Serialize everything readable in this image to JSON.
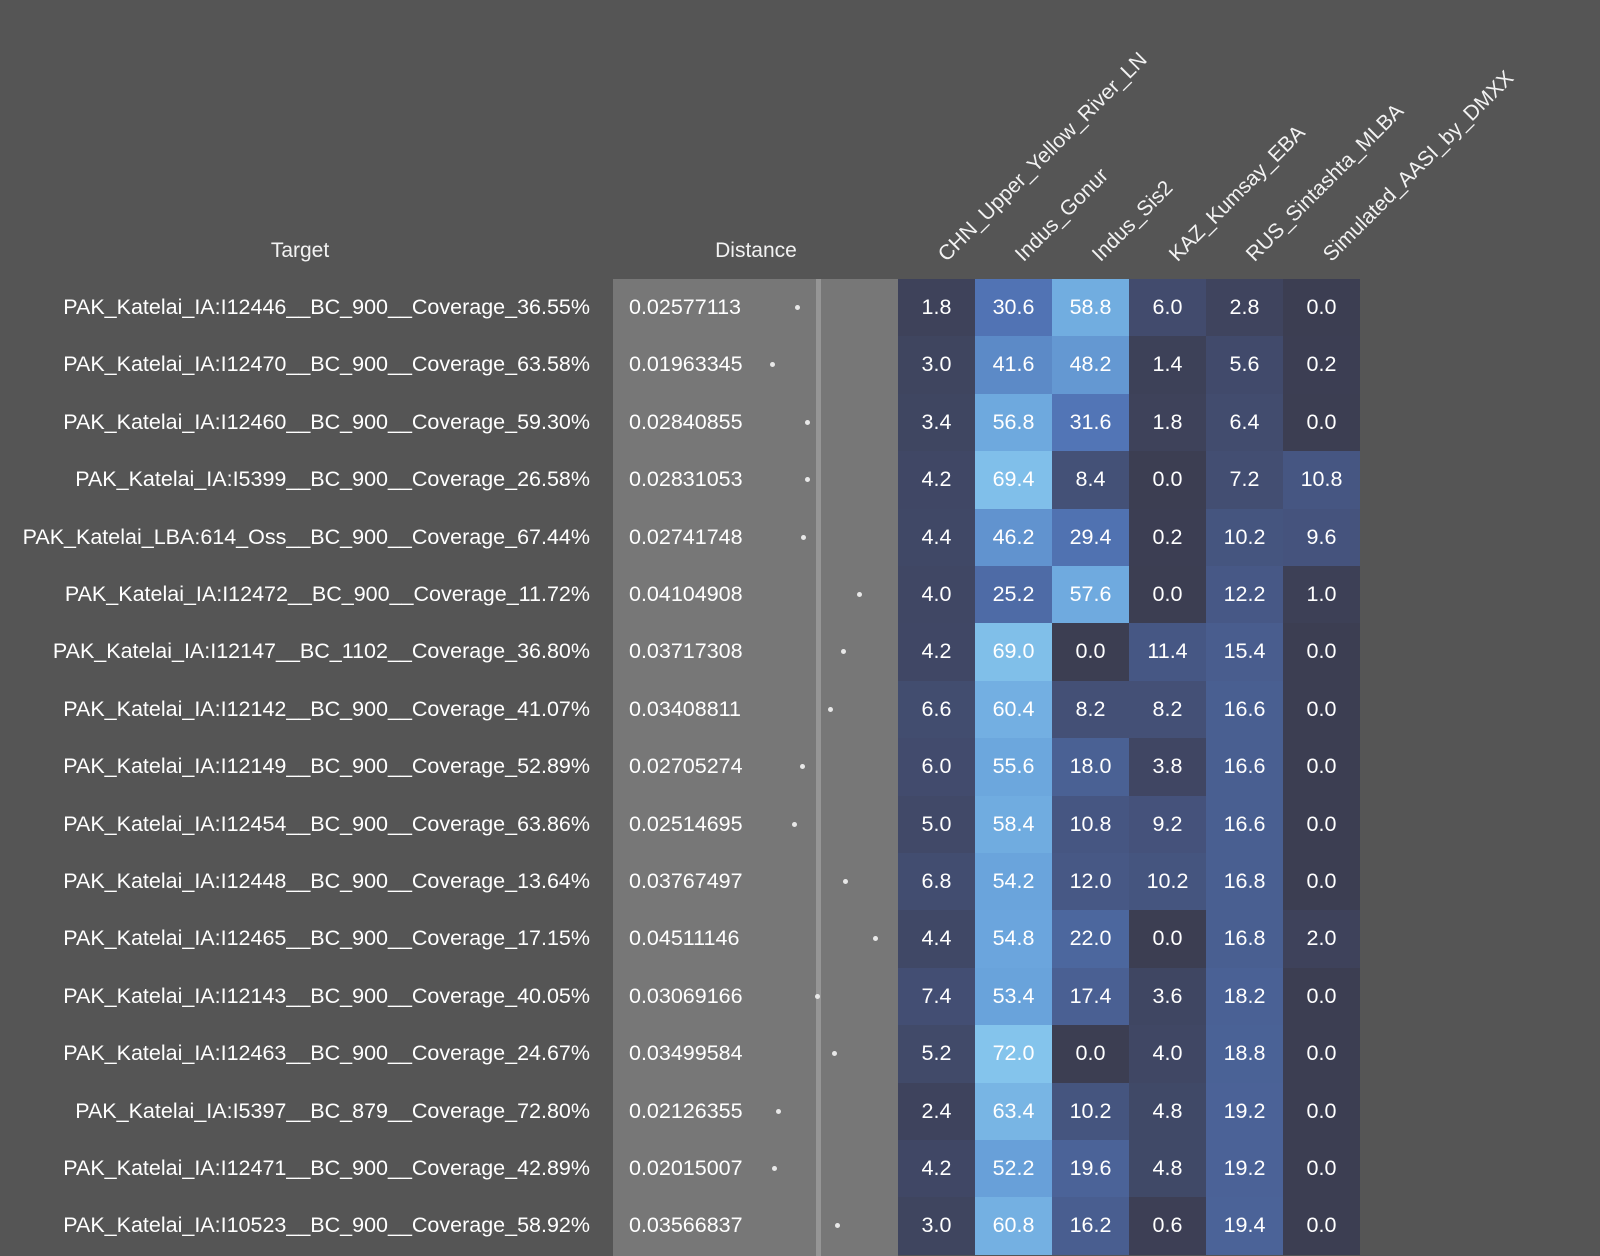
{
  "headers": {
    "target": "Target",
    "distance": "Distance",
    "sources": [
      "CHN_Upper_Yellow_River_LN",
      "Indus_Gonur",
      "Indus_Sis2",
      "KAZ_Kumsay_EBA",
      "RUS_Sintashta_MLBA",
      "Simulated_AASI_by_DMXX"
    ]
  },
  "rows": [
    {
      "target": "PAK_Katelai_IA:I12446__BC_900__Coverage_36.55%",
      "distance": "0.02577113",
      "distance_value": 0.02577113,
      "values": [
        "1.8",
        "30.6",
        "58.8",
        "6.0",
        "2.8",
        "0.0"
      ]
    },
    {
      "target": "PAK_Katelai_IA:I12470__BC_900__Coverage_63.58%",
      "distance": "0.01963345",
      "distance_value": 0.01963345,
      "values": [
        "3.0",
        "41.6",
        "48.2",
        "1.4",
        "5.6",
        "0.2"
      ]
    },
    {
      "target": "PAK_Katelai_IA:I12460__BC_900__Coverage_59.30%",
      "distance": "0.02840855",
      "distance_value": 0.02840855,
      "values": [
        "3.4",
        "56.8",
        "31.6",
        "1.8",
        "6.4",
        "0.0"
      ]
    },
    {
      "target": "PAK_Katelai_IA:I5399__BC_900__Coverage_26.58%",
      "distance": "0.02831053",
      "distance_value": 0.02831053,
      "values": [
        "4.2",
        "69.4",
        "8.4",
        "0.0",
        "7.2",
        "10.8"
      ]
    },
    {
      "target": "PAK_Katelai_LBA:614_Oss__BC_900__Coverage_67.44%",
      "distance": "0.02741748",
      "distance_value": 0.02741748,
      "values": [
        "4.4",
        "46.2",
        "29.4",
        "0.2",
        "10.2",
        "9.6"
      ]
    },
    {
      "target": "PAK_Katelai_IA:I12472__BC_900__Coverage_11.72%",
      "distance": "0.04104908",
      "distance_value": 0.04104908,
      "values": [
        "4.0",
        "25.2",
        "57.6",
        "0.0",
        "12.2",
        "1.0"
      ]
    },
    {
      "target": "PAK_Katelai_IA:I12147__BC_1102__Coverage_36.80%",
      "distance": "0.03717308",
      "distance_value": 0.03717308,
      "values": [
        "4.2",
        "69.0",
        "0.0",
        "11.4",
        "15.4",
        "0.0"
      ]
    },
    {
      "target": "PAK_Katelai_IA:I12142__BC_900__Coverage_41.07%",
      "distance": "0.03408811",
      "distance_value": 0.03408811,
      "values": [
        "6.6",
        "60.4",
        "8.2",
        "8.2",
        "16.6",
        "0.0"
      ]
    },
    {
      "target": "PAK_Katelai_IA:I12149__BC_900__Coverage_52.89%",
      "distance": "0.02705274",
      "distance_value": 0.02705274,
      "values": [
        "6.0",
        "55.6",
        "18.0",
        "3.8",
        "16.6",
        "0.0"
      ]
    },
    {
      "target": "PAK_Katelai_IA:I12454__BC_900__Coverage_63.86%",
      "distance": "0.02514695",
      "distance_value": 0.02514695,
      "values": [
        "5.0",
        "58.4",
        "10.8",
        "9.2",
        "16.6",
        "0.0"
      ]
    },
    {
      "target": "PAK_Katelai_IA:I12448__BC_900__Coverage_13.64%",
      "distance": "0.03767497",
      "distance_value": 0.03767497,
      "values": [
        "6.8",
        "54.2",
        "12.0",
        "10.2",
        "16.8",
        "0.0"
      ]
    },
    {
      "target": "PAK_Katelai_IA:I12465__BC_900__Coverage_17.15%",
      "distance": "0.04511146",
      "distance_value": 0.04511146,
      "values": [
        "4.4",
        "54.8",
        "22.0",
        "0.0",
        "16.8",
        "2.0"
      ]
    },
    {
      "target": "PAK_Katelai_IA:I12143__BC_900__Coverage_40.05%",
      "distance": "0.03069166",
      "distance_value": 0.03069166,
      "values": [
        "7.4",
        "53.4",
        "17.4",
        "3.6",
        "18.2",
        "0.0"
      ]
    },
    {
      "target": "PAK_Katelai_IA:I12463__BC_900__Coverage_24.67%",
      "distance": "0.03499584",
      "distance_value": 0.03499584,
      "values": [
        "5.2",
        "72.0",
        "0.0",
        "4.0",
        "18.8",
        "0.0"
      ]
    },
    {
      "target": "PAK_Katelai_IA:I5397__BC_879__Coverage_72.80%",
      "distance": "0.02126355",
      "distance_value": 0.02126355,
      "values": [
        "2.4",
        "63.4",
        "10.2",
        "4.8",
        "19.2",
        "0.0"
      ]
    },
    {
      "target": "PAK_Katelai_IA:I12471__BC_900__Coverage_42.89%",
      "distance": "0.02015007",
      "distance_value": 0.02015007,
      "values": [
        "4.2",
        "52.2",
        "19.6",
        "4.8",
        "19.2",
        "0.0"
      ]
    },
    {
      "target": "PAK_Katelai_IA:I10523__BC_900__Coverage_58.92%",
      "distance": "0.03566837",
      "distance_value": 0.03566837,
      "values": [
        "3.0",
        "60.8",
        "16.2",
        "0.6",
        "19.4",
        "0.0"
      ]
    }
  ]
}
